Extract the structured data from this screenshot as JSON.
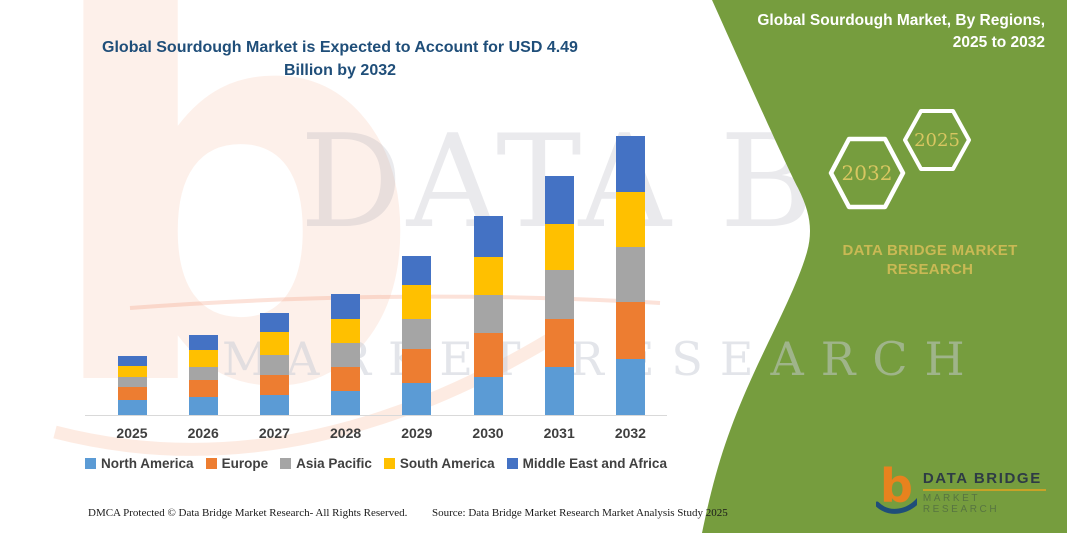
{
  "title": {
    "line1": "Global Sourdough Market is Expected to Account for USD 4.49",
    "line2": "Billion by 2032",
    "color": "#1F4E79"
  },
  "panel": {
    "bg_color": "#769D3E",
    "heading_line1": "Global Sourdough Market, By Regions,",
    "heading_line2": "2025 to 2032",
    "hexagons": [
      {
        "label": "2032"
      },
      {
        "label": "2025"
      }
    ],
    "brand_line1": "DATA BRIDGE MARKET",
    "brand_line2": "RESEARCH",
    "accent_text_color": "#C9B954",
    "logo": {
      "monogram": "b",
      "name": "DATA BRIDGE",
      "sub": "MARKET RESEARCH"
    }
  },
  "watermark": {
    "monogram": "b",
    "line1": "DATA BRIDGE",
    "line2": "MARKET RESEARCH"
  },
  "footer": {
    "left": "DMCA Protected © Data Bridge Market Research-  All Rights Reserved.",
    "right": "Source: Data Bridge Market Research  Market Analysis Study 2025"
  },
  "chart_data": {
    "type": "bar",
    "subtype": "stacked-vertical",
    "unit": "USD Billion",
    "title": "Global Sourdough Market is Expected to Account for USD 4.49 Billion by 2032",
    "xlabel": "",
    "ylabel": "",
    "axis_visible": false,
    "grid": false,
    "legend_position": "bottom",
    "ylim": [
      0,
      4.6
    ],
    "categories": [
      "2025",
      "2026",
      "2027",
      "2028",
      "2029",
      "2030",
      "2031",
      "2032"
    ],
    "series": [
      {
        "name": "North America",
        "color": "#5B9BD5",
        "values": [
          0.25,
          0.29,
          0.32,
          0.39,
          0.52,
          0.62,
          0.77,
          0.91
        ]
      },
      {
        "name": "Europe",
        "color": "#ED7D31",
        "values": [
          0.2,
          0.28,
          0.33,
          0.39,
          0.55,
          0.7,
          0.77,
          0.91
        ]
      },
      {
        "name": "Asia Pacific",
        "color": "#A5A5A5",
        "values": [
          0.16,
          0.21,
          0.31,
          0.38,
          0.48,
          0.62,
          0.79,
          0.88
        ]
      },
      {
        "name": "South America",
        "color": "#FFC000",
        "values": [
          0.18,
          0.27,
          0.37,
          0.39,
          0.55,
          0.61,
          0.75,
          0.9
        ]
      },
      {
        "name": "Middle East and Africa",
        "color": "#4472C4",
        "values": [
          0.16,
          0.24,
          0.31,
          0.4,
          0.46,
          0.65,
          0.77,
          0.89
        ]
      }
    ],
    "totals": [
      0.95,
      1.29,
      1.64,
      1.95,
      2.56,
      3.2,
      3.85,
      4.49
    ]
  }
}
